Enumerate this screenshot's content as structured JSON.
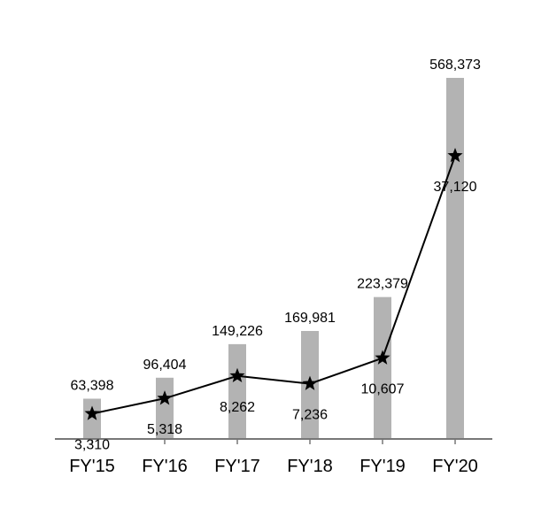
{
  "chart_data": {
    "type": "bar+line",
    "categories": [
      "FY'15",
      "FY'16",
      "FY'17",
      "FY'18",
      "FY'19",
      "FY'20"
    ],
    "series": [
      {
        "type": "bar",
        "values": [
          63398,
          96404,
          149226,
          169981,
          223379,
          568373
        ],
        "labels": [
          "63,398",
          "96,404",
          "149,226",
          "169,981",
          "223,379",
          "568,373"
        ],
        "color": "#b3b3b3"
      },
      {
        "type": "line",
        "marker": "star",
        "values": [
          3310,
          5318,
          8262,
          7236,
          10607,
          37120
        ],
        "labels": [
          "3,310",
          "5,318",
          "8,262",
          "7,236",
          "10,607",
          "37,120"
        ],
        "color": "#000000"
      }
    ],
    "bar_axis": {
      "ylim": [
        0,
        570000
      ]
    },
    "line_axis": {
      "ylim": [
        0,
        46000
      ]
    },
    "grid": false,
    "legend": "none"
  }
}
